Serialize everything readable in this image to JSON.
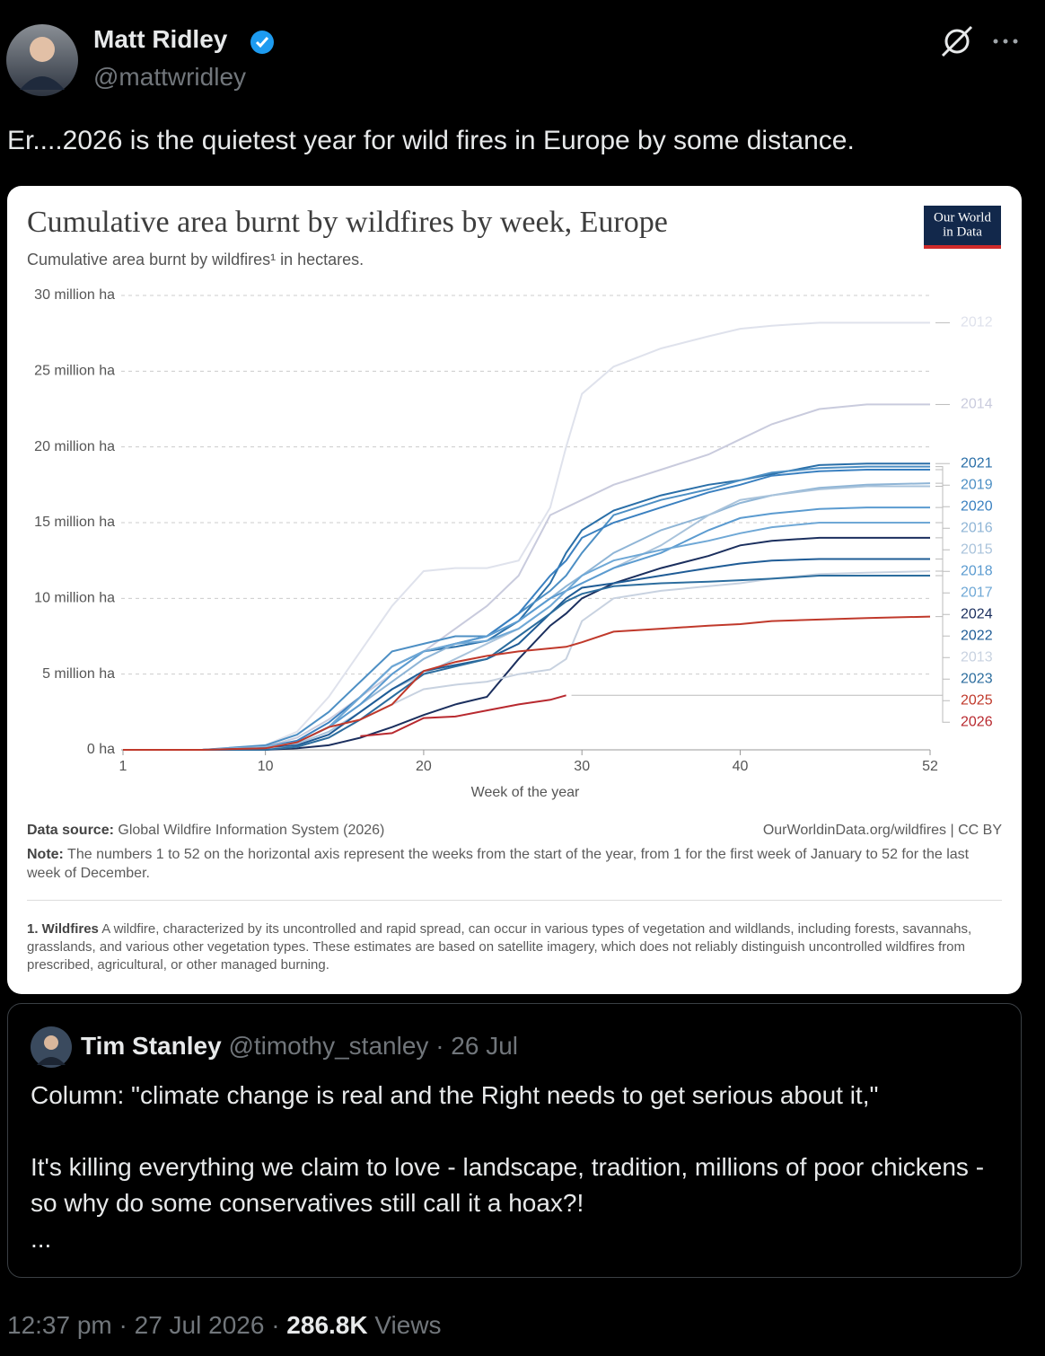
{
  "tweet": {
    "author": {
      "name": "Matt Ridley",
      "handle": "@mattwridley"
    },
    "text": "Er....2026 is the quietest year for wild fires in Europe by some distance.",
    "timestamp": "12:37 pm · 27 Jul 2026 ·",
    "views": "286.8K",
    "views_label": "Views"
  },
  "chart_data": {
    "type": "line",
    "title": "Cumulative area burnt by wildfires by week, Europe",
    "subtitle": "Cumulative area burnt by wildfires¹ in hectares.",
    "logo_lines": [
      "Our World",
      "in Data"
    ],
    "xlabel": "Week of the year",
    "source_label": "Data source:",
    "source": "Global Wildfire Information System (2026)",
    "url": "OurWorldinData.org/wildfires | CC BY",
    "note_label": "Note:",
    "note": "The numbers 1 to 52 on the horizontal axis represent the weeks from the start of the year, from 1 for the first week of January to 52 for the last week of December.",
    "footnote_label": "1. Wildfires",
    "footnote": "A wildfire, characterized by its uncontrolled and rapid spread, can occur in various types of vegetation and wildlands, including forests, savannahs, grasslands, and various other vegetation types. These estimates are based on satellite imagery, which does not reliably distinguish uncontrolled wildfires from prescribed, agricultural, or other managed burning.",
    "grid": true,
    "xlim": [
      1,
      52
    ],
    "xticks": [
      1,
      10,
      20,
      30,
      40,
      52
    ],
    "ylim": [
      0,
      30
    ],
    "yticks": [
      {
        "value": 0,
        "label": "0 ha"
      },
      {
        "value": 5,
        "label": "5 million ha"
      },
      {
        "value": 10,
        "label": "10 million ha"
      },
      {
        "value": 15,
        "label": "15 million ha"
      },
      {
        "value": 20,
        "label": "20 million ha"
      },
      {
        "value": 25,
        "label": "25 million ha"
      },
      {
        "value": 30,
        "label": "30 million ha"
      }
    ],
    "x": [
      1,
      6,
      10,
      12,
      14,
      16,
      18,
      20,
      22,
      24,
      26,
      28,
      29,
      30,
      32,
      35,
      38,
      40,
      42,
      45,
      48,
      52
    ],
    "series": [
      {
        "name": "2012",
        "color": "#dfe2ec",
        "values": [
          0,
          0,
          0.3,
          1.2,
          3.5,
          6.5,
          9.5,
          11.8,
          12,
          12,
          12.5,
          16,
          20,
          23.5,
          25.3,
          26.5,
          27.3,
          27.8,
          28,
          28.2,
          28.2,
          28.2
        ]
      },
      {
        "name": "2014",
        "color": "#c9cbdd",
        "values": [
          0,
          0,
          0.2,
          0.8,
          2,
          3.5,
          5,
          6.5,
          8,
          9.5,
          11.5,
          15.5,
          16,
          16.5,
          17.5,
          18.5,
          19.5,
          20.5,
          21.5,
          22.5,
          22.8,
          22.8
        ]
      },
      {
        "name": "2021",
        "color": "#2a6fa8",
        "values": [
          0,
          0,
          0.1,
          0.5,
          1.5,
          3.5,
          5.5,
          6.5,
          6.8,
          7.2,
          8.5,
          11,
          13,
          14.5,
          15.8,
          16.8,
          17.5,
          17.8,
          18.2,
          18.8,
          18.9,
          18.9
        ]
      },
      {
        "name": "2019",
        "color": "#4d8fc4",
        "values": [
          0,
          0,
          0.3,
          1,
          2.5,
          4.5,
          6.5,
          7,
          7.5,
          7.5,
          9,
          10.5,
          11.5,
          13,
          15.5,
          16.5,
          17.2,
          17.8,
          18.3,
          18.6,
          18.7,
          18.7
        ]
      },
      {
        "name": "2020",
        "color": "#3a80c0",
        "values": [
          0,
          0,
          0.2,
          0.6,
          1.8,
          3.5,
          5.5,
          6.5,
          7,
          7.5,
          9,
          11.5,
          12.5,
          14,
          15,
          16,
          17,
          17.5,
          18.1,
          18.4,
          18.5,
          18.5
        ]
      },
      {
        "name": "2016",
        "color": "#8fb5d6",
        "values": [
          0,
          0,
          0.2,
          0.5,
          1.5,
          3,
          4.5,
          6,
          7,
          7.5,
          8.5,
          10,
          10.8,
          11.5,
          13,
          14.5,
          15.5,
          16.3,
          16.8,
          17.3,
          17.5,
          17.6
        ]
      },
      {
        "name": "2015",
        "color": "#a9c3db",
        "values": [
          0,
          0,
          0.1,
          0.4,
          1.2,
          2.5,
          4,
          5,
          6,
          7,
          8,
          9.5,
          10.5,
          11,
          12,
          13.5,
          15.5,
          16.5,
          16.8,
          17.2,
          17.4,
          17.4
        ]
      },
      {
        "name": "2018",
        "color": "#5b9bd0",
        "values": [
          0,
          0,
          0.1,
          0.5,
          1.5,
          3,
          5,
          6.5,
          7,
          7.5,
          8.5,
          10,
          10.5,
          11,
          12,
          13,
          14.5,
          15.3,
          15.6,
          15.9,
          16,
          16
        ]
      },
      {
        "name": "2017",
        "color": "#6fa8d6",
        "values": [
          0,
          0,
          0.1,
          0.5,
          1.5,
          3.5,
          5.5,
          6.5,
          7,
          7.2,
          8,
          9.5,
          10.5,
          11.5,
          12.5,
          13.2,
          13.8,
          14.3,
          14.7,
          15,
          15,
          15
        ]
      },
      {
        "name": "2024",
        "color": "#1b2f5e",
        "values": [
          0,
          0,
          0,
          0.1,
          0.3,
          0.8,
          1.5,
          2.3,
          3,
          3.5,
          6,
          8.2,
          9,
          10,
          11,
          12,
          12.8,
          13.5,
          13.8,
          14,
          14,
          14
        ]
      },
      {
        "name": "2022",
        "color": "#1f5c96",
        "values": [
          0,
          0,
          0.1,
          0.3,
          1,
          2.5,
          4,
          5.2,
          5.6,
          6,
          7,
          9,
          10,
          10.7,
          11,
          11.5,
          12,
          12.3,
          12.5,
          12.6,
          12.6,
          12.6
        ]
      },
      {
        "name": "2013",
        "color": "#c8d2e0",
        "values": [
          0,
          0,
          0.05,
          0.2,
          0.8,
          2,
          3,
          4,
          4.3,
          4.5,
          5,
          5.3,
          6,
          8.5,
          10,
          10.5,
          10.8,
          11,
          11.3,
          11.6,
          11.7,
          11.8
        ]
      },
      {
        "name": "2023",
        "color": "#2c6d9e",
        "values": [
          0,
          0,
          0,
          0.2,
          0.8,
          2,
          3.5,
          5,
          5.5,
          6,
          7.5,
          9,
          9.8,
          10.3,
          10.8,
          11,
          11.1,
          11.2,
          11.3,
          11.5,
          11.5,
          11.5
        ]
      },
      {
        "name": "2025",
        "color": "#c0392b",
        "values": [
          0,
          0,
          0.1,
          0.5,
          1.5,
          2,
          3,
          5.2,
          5.8,
          6.2,
          6.5,
          6.7,
          6.8,
          7.1,
          7.8,
          8,
          8.2,
          8.3,
          8.5,
          8.6,
          8.7,
          8.8
        ]
      },
      {
        "name": "2026",
        "color": "#b8292f",
        "values": [
          null,
          null,
          null,
          null,
          null,
          0.9,
          1.1,
          2.1,
          2.2,
          2.6,
          3,
          3.3,
          3.6,
          null,
          null,
          null,
          null,
          null,
          null,
          null,
          null,
          null
        ]
      }
    ]
  },
  "quote": {
    "name": "Tim Stanley",
    "handle": "@timothy_stanley",
    "date": "· 26 Jul",
    "paragraphs": [
      "Column: \"climate change is real and the Right needs to get serious about it,\"",
      "It's killing everything we claim to love - landscape, tradition, millions of poor chickens - so why do some conservatives still call it a hoax?!",
      "..."
    ]
  }
}
